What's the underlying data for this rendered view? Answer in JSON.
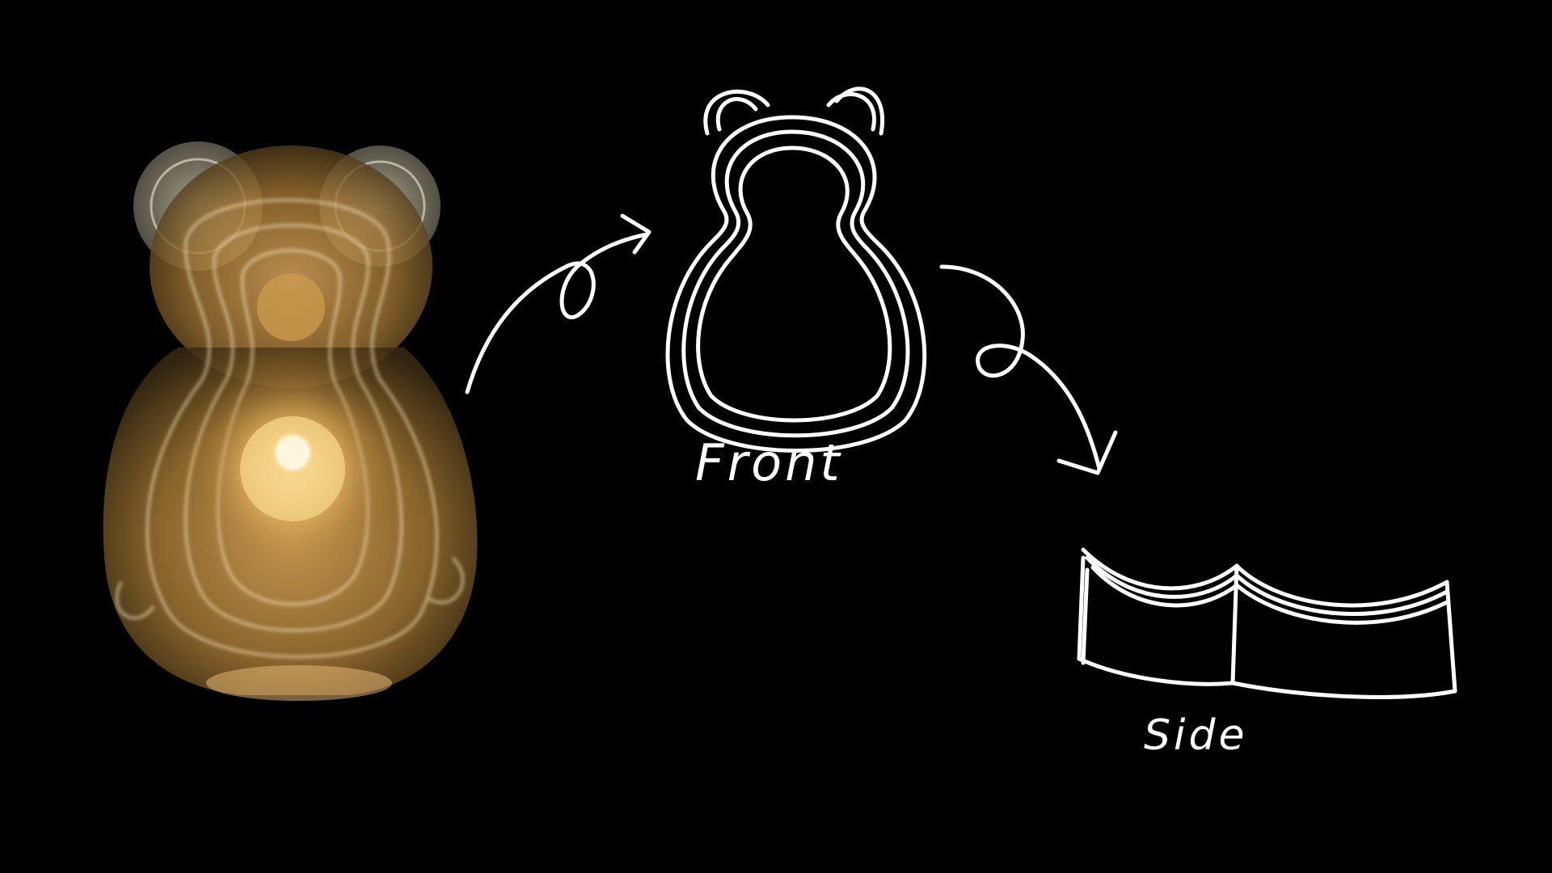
{
  "diagram": {
    "labels": {
      "front": "Front",
      "side": "Side"
    },
    "colors": {
      "background": "#000000",
      "sketch_stroke": "#ffffff",
      "lamp_glow": "#f7c56a",
      "lamp_body": "#b88a3e"
    }
  }
}
